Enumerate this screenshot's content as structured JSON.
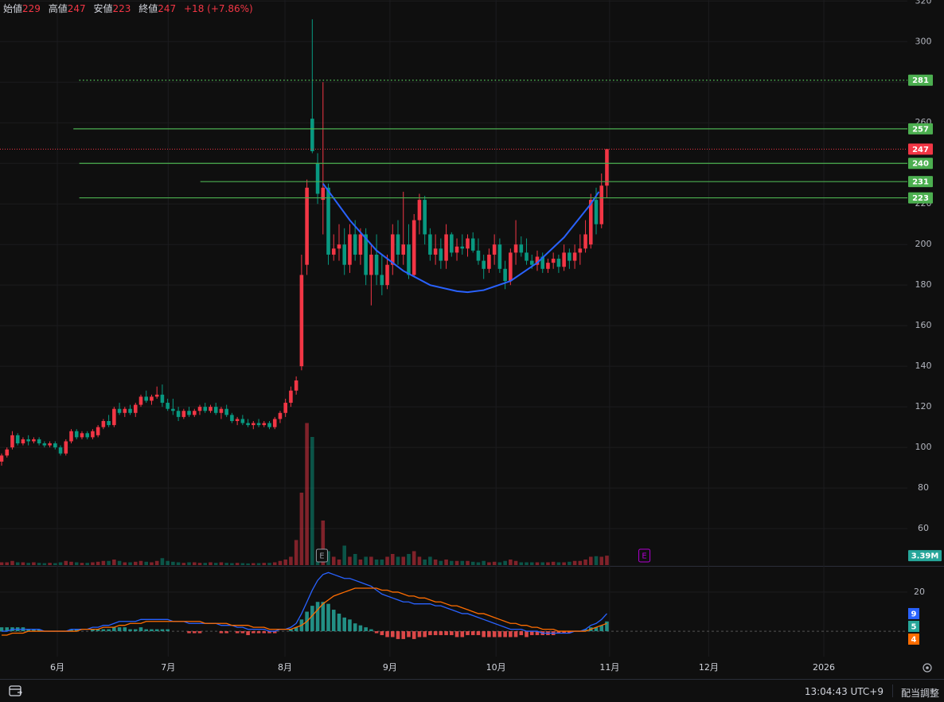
{
  "chart_data": {
    "type": "candlestick",
    "ohlc_labels": [
      "始値",
      "高値",
      "安値",
      "終値"
    ],
    "change": "+18 (+7.86%)",
    "up_color": "#f23645",
    "down_color": "#089981",
    "grid": true,
    "xlim": [
      -0.3,
      169.1
    ],
    "xticks": [
      {
        "value": 10.4,
        "label": "6月"
      },
      {
        "value": 31.1,
        "label": "7月"
      },
      {
        "value": 52.9,
        "label": "8月"
      },
      {
        "value": 72.5,
        "label": "9月"
      },
      {
        "value": 92.3,
        "label": "10月"
      },
      {
        "value": 113.5,
        "label": "11月"
      },
      {
        "value": 132,
        "label": "12月"
      },
      {
        "value": 153.5,
        "label": "2026"
      }
    ],
    "ylim": [
      42,
      320.5
    ],
    "yticks": [
      60,
      80,
      100,
      120,
      140,
      160,
      180,
      200,
      220,
      240,
      260,
      280,
      300,
      320
    ],
    "x": [
      0,
      1,
      2,
      3,
      4,
      5,
      6,
      7,
      8,
      9,
      10,
      11,
      12,
      13,
      14,
      15,
      16,
      17,
      18,
      19,
      20,
      21,
      22,
      23,
      24,
      25,
      26,
      27,
      28,
      29,
      30,
      31,
      32,
      33,
      34,
      35,
      36,
      37,
      38,
      39,
      40,
      41,
      42,
      43,
      44,
      45,
      46,
      47,
      48,
      49,
      50,
      51,
      52,
      53,
      54,
      55,
      56,
      57,
      58,
      59,
      60,
      61,
      62,
      63,
      64,
      65,
      66,
      67,
      68,
      69,
      70,
      71,
      72,
      73,
      74,
      75,
      76,
      77,
      78,
      79,
      80,
      81,
      82,
      83,
      84,
      85,
      86,
      87,
      88,
      89,
      90,
      91,
      92,
      93,
      94,
      95,
      96,
      97,
      98,
      99,
      100,
      101,
      102,
      103,
      104,
      105,
      106,
      107,
      108,
      109,
      110,
      111,
      112,
      113
    ],
    "open": [
      93,
      96,
      100,
      106,
      102,
      104,
      103,
      104,
      102,
      101,
      102,
      100,
      97,
      103,
      108,
      105,
      107,
      105,
      106,
      110,
      113,
      111,
      119,
      117,
      119,
      117,
      121,
      125,
      123,
      125,
      126,
      122,
      119,
      118,
      115,
      118,
      116,
      118,
      120,
      118,
      120,
      117,
      119,
      116,
      113,
      114,
      112,
      111,
      112,
      111,
      112,
      110,
      114,
      117,
      122,
      128,
      140,
      190,
      262,
      240,
      222,
      228,
      195,
      198,
      200,
      190,
      205,
      195,
      205,
      185,
      195,
      185,
      180,
      190,
      205,
      195,
      200,
      185,
      212,
      222,
      205,
      195,
      198,
      192,
      205,
      196,
      199,
      198,
      203,
      197,
      192,
      188,
      195,
      200,
      188,
      182,
      196,
      200,
      196,
      192,
      190,
      194,
      188,
      191,
      193,
      189,
      196,
      192,
      196,
      198,
      200,
      222,
      210,
      229
    ],
    "high": [
      97,
      100,
      108,
      107,
      105,
      106,
      105,
      105,
      103,
      103,
      103,
      101,
      104,
      109,
      109,
      108,
      108,
      109,
      111,
      114,
      116,
      120,
      122,
      120,
      121,
      122,
      126,
      128,
      126,
      130,
      131,
      124,
      124,
      120,
      119,
      120,
      119,
      121,
      122,
      121,
      122,
      120,
      121,
      117,
      115,
      116,
      114,
      113,
      114,
      113,
      113,
      115,
      118,
      124,
      130,
      135,
      195,
      232,
      311,
      245,
      280,
      230,
      205,
      210,
      208,
      210,
      212,
      208,
      208,
      200,
      205,
      195,
      195,
      210,
      212,
      226,
      210,
      215,
      225,
      224,
      208,
      205,
      203,
      210,
      206,
      203,
      205,
      205,
      206,
      203,
      195,
      198,
      205,
      203,
      192,
      198,
      212,
      204,
      203,
      195,
      197,
      196,
      193,
      196,
      195,
      200,
      198,
      200,
      205,
      212,
      225,
      228,
      235,
      247
    ],
    "low": [
      91,
      95,
      99,
      101,
      101,
      101,
      102,
      101,
      100,
      100,
      99,
      96,
      96,
      102,
      104,
      104,
      104,
      104,
      105,
      109,
      110,
      110,
      116,
      115,
      116,
      115,
      120,
      122,
      121,
      124,
      120,
      118,
      116,
      113,
      114,
      115,
      115,
      116,
      117,
      117,
      116,
      114,
      115,
      112,
      111,
      111,
      110,
      109,
      110,
      110,
      109,
      109,
      112,
      115,
      120,
      126,
      138,
      185,
      245,
      220,
      205,
      190,
      192,
      192,
      185,
      186,
      192,
      190,
      180,
      170,
      180,
      175,
      178,
      185,
      190,
      190,
      183,
      184,
      205,
      200,
      192,
      190,
      188,
      188,
      194,
      192,
      195,
      194,
      196,
      190,
      183,
      186,
      190,
      186,
      178,
      180,
      190,
      194,
      190,
      188,
      187,
      186,
      186,
      188,
      186,
      187,
      188,
      188,
      190,
      196,
      198,
      205,
      208,
      223
    ],
    "close": [
      96,
      99,
      106,
      102,
      104,
      103,
      104,
      102,
      101,
      102,
      100,
      97,
      103,
      108,
      105,
      107,
      105,
      108,
      110,
      113,
      111,
      119,
      117,
      119,
      117,
      121,
      125,
      123,
      125,
      126,
      122,
      119,
      118,
      115,
      118,
      116,
      118,
      120,
      118,
      120,
      117,
      119,
      116,
      113,
      114,
      112,
      111,
      112,
      111,
      112,
      110,
      114,
      117,
      122,
      128,
      133,
      185,
      228,
      246,
      225,
      228,
      195,
      198,
      200,
      190,
      205,
      195,
      205,
      185,
      195,
      185,
      180,
      190,
      205,
      195,
      200,
      185,
      212,
      222,
      205,
      195,
      198,
      192,
      205,
      196,
      199,
      198,
      203,
      197,
      192,
      188,
      195,
      200,
      188,
      182,
      196,
      200,
      196,
      192,
      190,
      194,
      188,
      191,
      193,
      189,
      196,
      192,
      196,
      198,
      205,
      222,
      210,
      229,
      247
    ],
    "last_price_color": "#f23645",
    "price_lines": [
      {
        "value": 281,
        "from": 14.5,
        "style": "dotted",
        "color": "#4caf50"
      },
      {
        "value": 257,
        "from": 13.4,
        "style": "solid",
        "color": "#4caf50"
      },
      {
        "value": 240,
        "from": 14.5,
        "style": "solid",
        "color": "#4caf50"
      },
      {
        "value": 231,
        "from": 37.1,
        "style": "solid",
        "color": "#4caf50"
      },
      {
        "value": 223,
        "from": 14.5,
        "style": "solid",
        "color": "#4caf50"
      }
    ],
    "curve": {
      "color": "#2962ff",
      "x": [
        60,
        65,
        70,
        75,
        80,
        85,
        87,
        90,
        95,
        100,
        105,
        110,
        111.5
      ],
      "y": [
        230,
        212,
        197,
        187,
        180,
        177,
        176.5,
        177.5,
        182,
        191,
        203.5,
        220,
        226
      ]
    },
    "events": [
      {
        "x": 59.8,
        "label": "E",
        "color": "#9598a1"
      },
      {
        "x": 120,
        "label": "E",
        "color": "#b000d0"
      }
    ],
    "volume": {
      "ylim": [
        0,
        60
      ],
      "label_color": "#26a69a",
      "last_label": "3.39M",
      "values": [
        1,
        1,
        1.5,
        1,
        1,
        0.8,
        1,
        0.8,
        0.7,
        0.8,
        0.7,
        1,
        1.5,
        1.2,
        1,
        0.8,
        0.8,
        1,
        1.2,
        1.5,
        1.5,
        2,
        1.5,
        1,
        1,
        1.2,
        1.5,
        1.2,
        1,
        1.5,
        2.5,
        1.5,
        1.2,
        1,
        0.8,
        1,
        1,
        0.8,
        0.8,
        1,
        0.8,
        1,
        0.8,
        0.7,
        0.8,
        0.7,
        0.6,
        0.7,
        0.7,
        0.8,
        0.8,
        1,
        1.5,
        2,
        3,
        9,
        26,
        51,
        46,
        5,
        16,
        5,
        3,
        2,
        7,
        3,
        4,
        2,
        3,
        3,
        2,
        2,
        3,
        4,
        3,
        3,
        4,
        5,
        3,
        2,
        3,
        2,
        1.5,
        2,
        1.5,
        1.5,
        1.5,
        1.5,
        1.2,
        1,
        1.5,
        1,
        1.2,
        1,
        1.5,
        2,
        1.5,
        1,
        1,
        1,
        1,
        1,
        1,
        1.2,
        1,
        1,
        1.2,
        1.5,
        1.5,
        2,
        3,
        3.2,
        3,
        3.39
      ]
    },
    "macd": {
      "ylim": [
        -13,
        33
      ],
      "yticks": [
        20
      ],
      "series": [
        {
          "type": "line",
          "color": "#2962ff",
          "values": [
            0,
            0,
            1,
            1,
            1,
            1,
            1,
            1,
            0,
            0,
            0,
            0,
            0,
            1,
            1,
            1,
            1,
            2,
            2,
            3,
            3,
            4,
            5,
            5,
            5,
            5,
            6,
            6,
            6,
            6,
            6,
            6,
            5,
            5,
            5,
            4,
            4,
            4,
            4,
            4,
            4,
            3,
            3,
            3,
            2,
            2,
            1,
            1,
            1,
            1,
            0,
            0,
            1,
            1,
            2,
            4,
            9,
            15,
            21,
            26,
            29,
            30,
            29,
            28,
            27,
            27,
            26,
            25,
            24,
            23,
            21,
            19,
            18,
            17,
            16,
            15,
            15,
            14,
            14,
            14,
            14,
            13,
            13,
            12,
            11,
            10,
            9,
            9,
            8,
            7,
            6,
            5,
            4,
            3,
            2,
            1,
            1,
            1,
            0,
            0,
            0,
            -1,
            -1,
            -1,
            -1,
            -1,
            -1,
            0,
            0,
            1,
            3,
            4,
            6,
            9
          ]
        },
        {
          "type": "bar",
          "color": "#26a69a",
          "negative_color": "#ff5252",
          "values": [
            2,
            2,
            2,
            2,
            2,
            1,
            1,
            1,
            0,
            0,
            0,
            0,
            0,
            1,
            1,
            0,
            0,
            1,
            1,
            1,
            1,
            2,
            2,
            2,
            1,
            1,
            2,
            1,
            1,
            1,
            1,
            1,
            0,
            0,
            0,
            -1,
            -1,
            -1,
            0,
            0,
            0,
            -1,
            -1,
            0,
            -1,
            -1,
            -2,
            -1,
            -1,
            -1,
            -1,
            -1,
            0,
            0,
            1,
            2,
            6,
            10,
            13,
            15,
            15,
            14,
            11,
            9,
            7,
            6,
            4,
            3,
            2,
            1,
            -1,
            -2,
            -3,
            -3,
            -4,
            -4,
            -3,
            -4,
            -3,
            -3,
            -2,
            -2,
            -2,
            -2,
            -2,
            -3,
            -3,
            -2,
            -2,
            -2,
            -3,
            -3,
            -3,
            -3,
            -3,
            -3,
            -3,
            -2,
            -3,
            -2,
            -2,
            -2,
            -2,
            -2,
            -1,
            -1,
            -1,
            0,
            0,
            1,
            2,
            2,
            3,
            5
          ]
        },
        {
          "type": "line",
          "color": "#ff6d00",
          "values": [
            -2,
            -2,
            -1,
            -1,
            -1,
            0,
            0,
            0,
            0,
            0,
            0,
            0,
            0,
            0,
            0,
            1,
            1,
            1,
            1,
            2,
            2,
            2,
            3,
            3,
            4,
            4,
            4,
            5,
            5,
            5,
            5,
            5,
            5,
            5,
            5,
            5,
            5,
            5,
            4,
            4,
            4,
            4,
            4,
            3,
            3,
            3,
            3,
            2,
            2,
            2,
            1,
            1,
            1,
            1,
            1,
            2,
            3,
            5,
            8,
            11,
            14,
            16,
            18,
            19,
            20,
            21,
            22,
            22,
            22,
            22,
            22,
            21,
            21,
            20,
            20,
            19,
            18,
            18,
            17,
            17,
            16,
            15,
            15,
            14,
            13,
            13,
            12,
            11,
            10,
            9,
            9,
            8,
            7,
            6,
            5,
            4,
            4,
            3,
            3,
            2,
            2,
            1,
            1,
            1,
            0,
            0,
            0,
            0,
            0,
            0,
            1,
            2,
            3,
            4
          ]
        }
      ]
    },
    "footer": {
      "time": "13:04:43 UTC+9",
      "adjust": "配当調整"
    }
  }
}
